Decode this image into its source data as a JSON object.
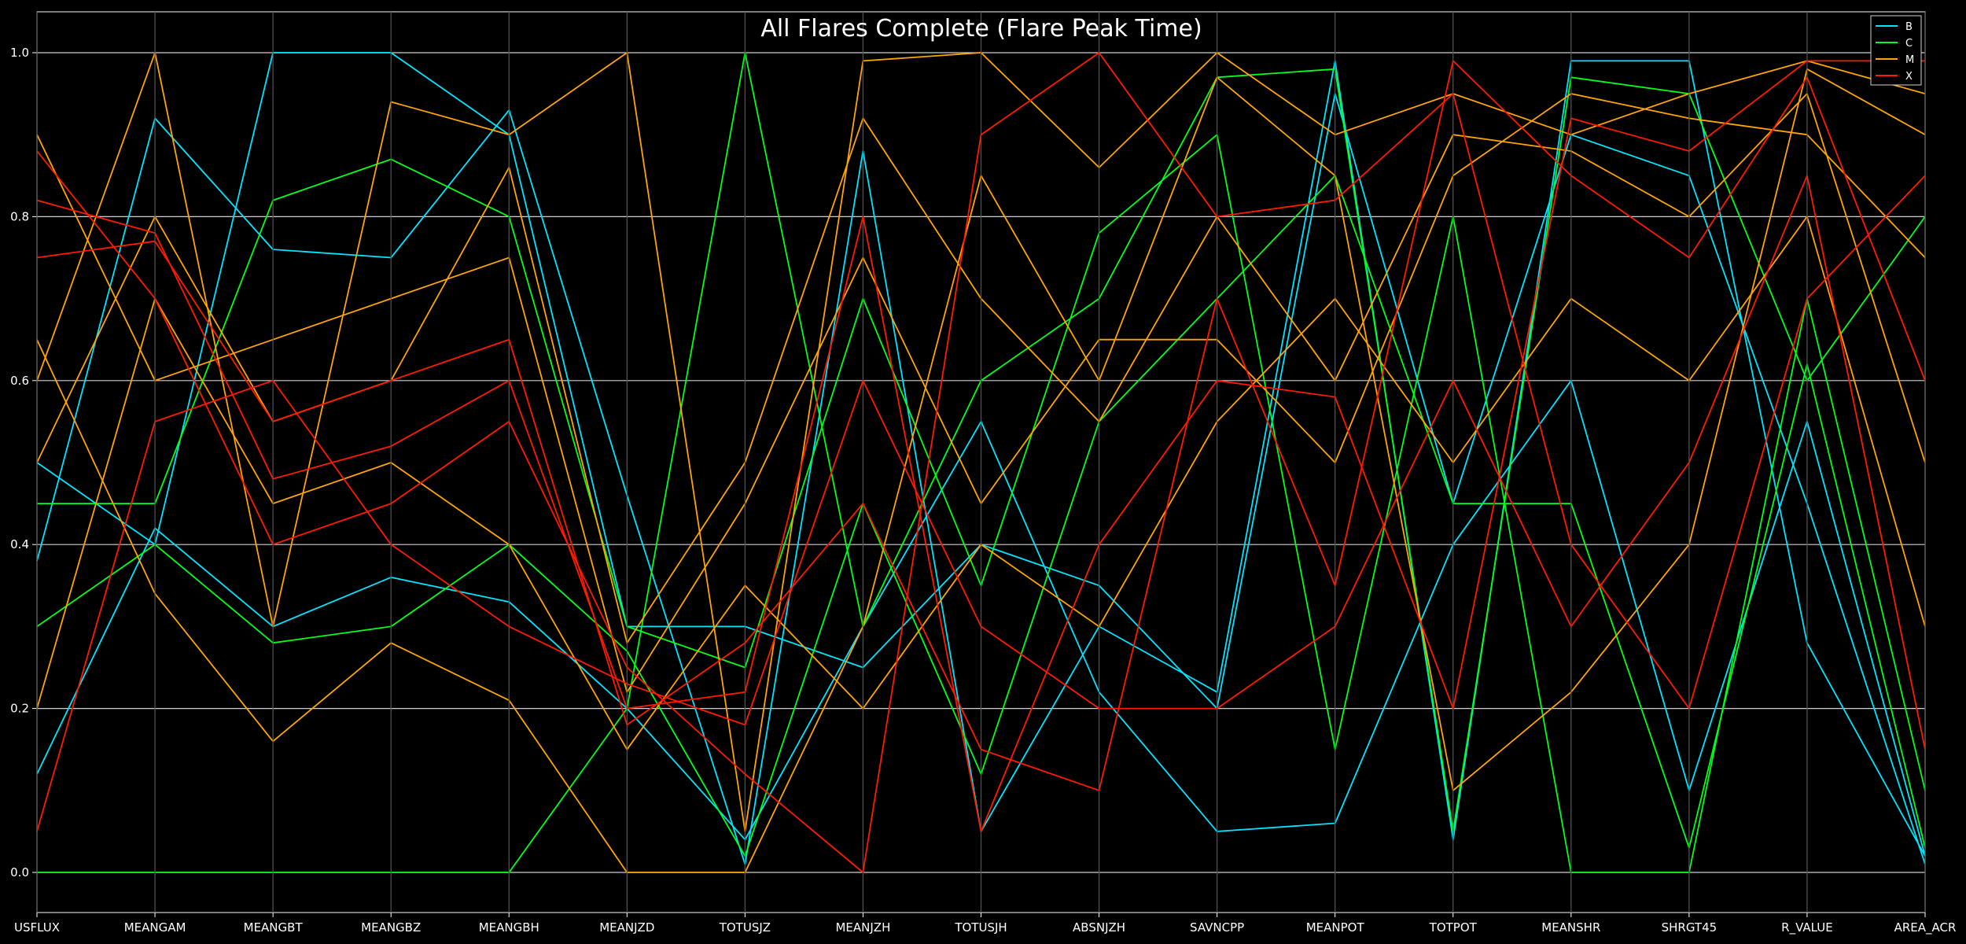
{
  "chart_data": {
    "type": "parallel-coordinates",
    "title": "All Flares Complete (Flare Peak Time)",
    "axes": [
      "USFLUX",
      "MEANGAM",
      "MEANGBT",
      "MEANGBZ",
      "MEANGBH",
      "MEANJZD",
      "TOTUSJZ",
      "MEANJZH",
      "TOTUSJH",
      "ABSNJZH",
      "SAVNCPP",
      "MEANPOT",
      "TOTPOT",
      "MEANSHR",
      "SHRGT45",
      "R_VALUE",
      "AREA_ACR"
    ],
    "ylim": [
      0,
      1
    ],
    "yticks": [
      "0.0",
      "0.2",
      "0.4",
      "0.6",
      "0.8",
      "1.0"
    ],
    "ytick_values": [
      0,
      0.2,
      0.4,
      0.6,
      0.8,
      1.0
    ],
    "grid": true,
    "legend_position": "top-right",
    "series": [
      {
        "name": "B",
        "color": "#00e5ff",
        "lines": [
          [
            0.38,
            0.92,
            0.76,
            0.75,
            0.93,
            0.46,
            0.01,
            0.88,
            0.05,
            0.3,
            0.22,
            0.99,
            0.04,
            0.99,
            0.99,
            0.28,
            0.02
          ],
          [
            0.12,
            0.42,
            0.3,
            0.36,
            0.33,
            0.2,
            0.04,
            0.3,
            0.55,
            0.22,
            0.05,
            0.06,
            0.4,
            0.6,
            0.1,
            0.55,
            0.02
          ],
          [
            0.5,
            0.4,
            1.0,
            1.0,
            0.9,
            0.3,
            0.3,
            0.25,
            0.4,
            0.35,
            0.2,
            0.95,
            0.45,
            0.9,
            0.85,
            0.45,
            0.01
          ]
        ]
      },
      {
        "name": "C",
        "color": "#00ff1a",
        "lines": [
          [
            0.0,
            0.0,
            0.0,
            0.0,
            0.0,
            0.2,
            1.0,
            0.3,
            0.6,
            0.7,
            0.97,
            0.98,
            0.05,
            0.97,
            0.95,
            0.6,
            0.8
          ],
          [
            0.45,
            0.45,
            0.82,
            0.87,
            0.8,
            0.3,
            0.25,
            0.7,
            0.35,
            0.78,
            0.9,
            0.15,
            0.8,
            0.0,
            0.0,
            0.7,
            0.1
          ],
          [
            0.3,
            0.4,
            0.28,
            0.3,
            0.4,
            0.27,
            0.02,
            0.45,
            0.12,
            0.55,
            0.7,
            0.85,
            0.45,
            0.45,
            0.03,
            0.62,
            0.03
          ]
        ]
      },
      {
        "name": "M",
        "color": "#ffa500",
        "lines": [
          [
            0.6,
            1.0,
            0.3,
            0.94,
            0.9,
            1.0,
            0.05,
            0.99,
            1.0,
            0.86,
            1.0,
            0.9,
            0.95,
            0.9,
            0.95,
            0.99,
            0.95
          ],
          [
            0.65,
            0.34,
            0.16,
            0.28,
            0.21,
            0.0,
            0.0,
            0.3,
            0.85,
            0.6,
            0.97,
            0.85,
            0.1,
            0.22,
            0.4,
            0.98,
            0.9
          ],
          [
            0.5,
            0.8,
            0.55,
            0.6,
            0.86,
            0.28,
            0.5,
            0.92,
            0.7,
            0.55,
            0.8,
            0.6,
            0.9,
            0.88,
            0.8,
            0.95,
            0.5
          ],
          [
            0.2,
            0.7,
            0.45,
            0.5,
            0.4,
            0.15,
            0.35,
            0.2,
            0.4,
            0.3,
            0.55,
            0.7,
            0.5,
            0.7,
            0.6,
            0.8,
            0.3
          ],
          [
            0.9,
            0.6,
            0.65,
            0.7,
            0.75,
            0.22,
            0.45,
            0.75,
            0.45,
            0.65,
            0.65,
            0.5,
            0.85,
            0.95,
            0.92,
            0.9,
            0.75
          ]
        ]
      },
      {
        "name": "X",
        "color": "#ff1a00",
        "lines": [
          [
            0.75,
            0.77,
            0.55,
            0.6,
            0.65,
            0.18,
            0.28,
            0.45,
            0.15,
            0.1,
            0.7,
            0.35,
            0.99,
            0.85,
            0.75,
            0.97,
            0.6
          ],
          [
            0.88,
            0.7,
            0.4,
            0.45,
            0.55,
            0.25,
            0.12,
            0.0,
            0.9,
            1.0,
            0.8,
            0.82,
            0.95,
            0.4,
            0.2,
            0.7,
            0.85
          ],
          [
            0.82,
            0.78,
            0.48,
            0.52,
            0.6,
            0.2,
            0.22,
            0.8,
            0.05,
            0.4,
            0.6,
            0.58,
            0.2,
            0.92,
            0.88,
            0.99,
            0.99
          ],
          [
            0.05,
            0.55,
            0.6,
            0.4,
            0.3,
            0.23,
            0.18,
            0.6,
            0.3,
            0.2,
            0.2,
            0.3,
            0.6,
            0.3,
            0.5,
            0.85,
            0.15
          ]
        ]
      }
    ]
  }
}
